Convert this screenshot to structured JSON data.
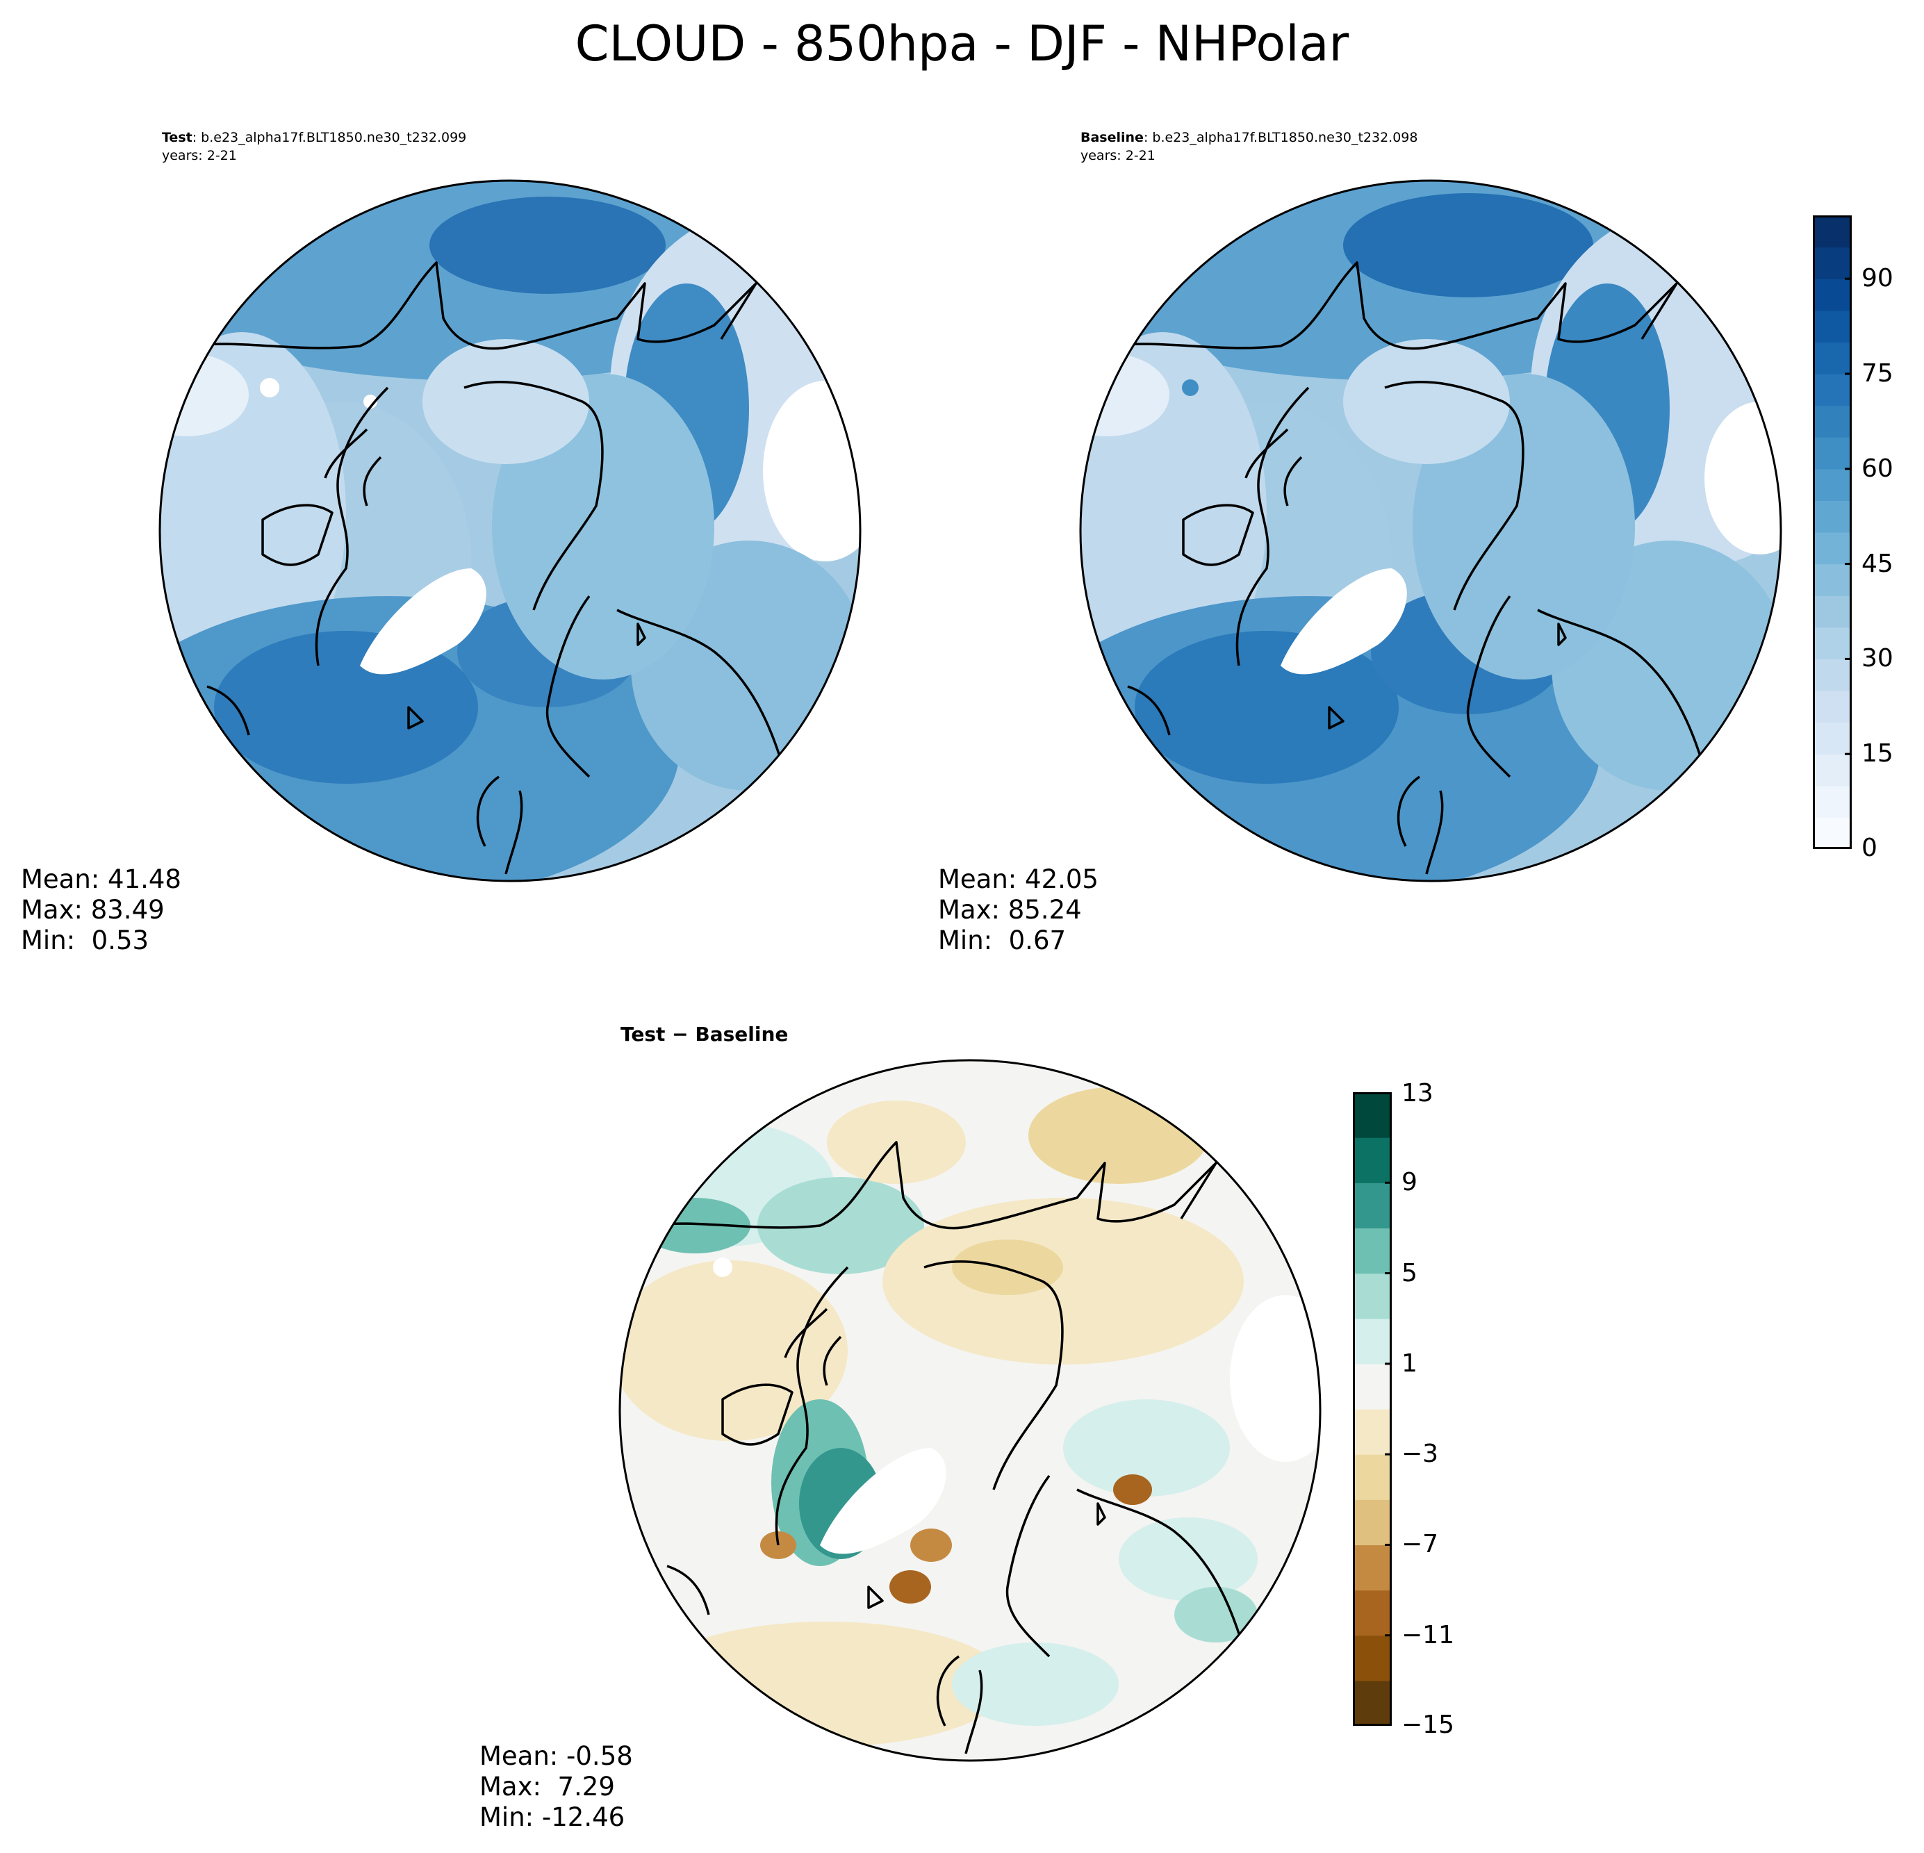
{
  "figure": {
    "title": "CLOUD - 850hpa - DJF - NHPolar"
  },
  "panels": {
    "test": {
      "label": "Test",
      "case": ": b.e23_alpha17f.BLT1850.ne30_t232.099",
      "years": "years: 2-21",
      "stats": {
        "mean": "Mean: 41.48",
        "max": "Max: 83.49",
        "min": "Min:  0.53"
      }
    },
    "baseline": {
      "label": "Baseline",
      "case": ": b.e23_alpha17f.BLT1850.ne30_t232.098",
      "years": "years: 2-21",
      "stats": {
        "mean": "Mean: 42.05",
        "max": "Max: 85.24",
        "min": "Min:  0.67"
      }
    },
    "diff": {
      "label": "Test − Baseline",
      "stats": {
        "mean": "Mean: -0.58",
        "max": "Max:  7.29",
        "min": "Min: -12.46"
      }
    }
  },
  "colorbars": {
    "cloud": {
      "ticks": [
        "0",
        "15",
        "30",
        "45",
        "60",
        "75",
        "90"
      ],
      "tick_values": [
        0,
        15,
        30,
        45,
        60,
        75,
        90
      ],
      "range": [
        0,
        100
      ],
      "n_levels": 20,
      "colormap": "Blues",
      "colors": [
        "#f7fbff",
        "#eef5fc",
        "#e3eef8",
        "#d8e7f5",
        "#cee0f2",
        "#c1d9ed",
        "#b0d2e8",
        "#9ec8e2",
        "#89bedc",
        "#74b3d8",
        "#60a7d2",
        "#4f9bcb",
        "#3f8fc5",
        "#3181bd",
        "#2474b7",
        "#1967ad",
        "#0e59a2",
        "#084b94",
        "#083d7f",
        "#08306b"
      ]
    },
    "diff": {
      "ticks": [
        "13",
        "9",
        "5",
        "1",
        "−3",
        "−7",
        "−11",
        "−15"
      ],
      "tick_values": [
        13,
        9,
        5,
        1,
        -3,
        -7,
        -11,
        -15
      ],
      "range": [
        -15,
        13
      ],
      "n_levels": 14,
      "colormap": "BrBG",
      "colors": [
        "#5f3c0c",
        "#8b510a",
        "#a86520",
        "#c58a41",
        "#dfc07e",
        "#ecd89f",
        "#f5e8c6",
        "#f4f4f2",
        "#d5efec",
        "#a9ddd4",
        "#6ec0b2",
        "#33978e",
        "#0c7264",
        "#00473c"
      ]
    }
  },
  "map_data": {
    "projection": "North Polar Stereographic",
    "variable": "CLOUD",
    "level": "850hpa",
    "season": "DJF"
  }
}
